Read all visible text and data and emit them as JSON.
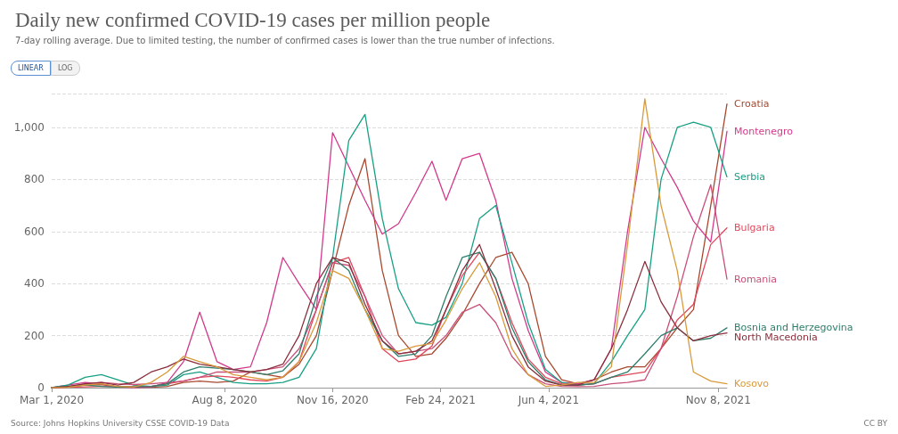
{
  "chart_data": {
    "type": "line",
    "title": "Daily new confirmed COVID-19 cases per million people",
    "subtitle": "7-day rolling average. Due to limited testing, the number of confirmed cases is lower than the true number of infections.",
    "annotations": [
      "LINEAR",
      "LOG",
      "Source: Johns Hopkins University CSSE COVID-19 Data",
      "CC BY"
    ],
    "x": [
      "2020-03-01",
      "2020-03-16",
      "2020-04-01",
      "2020-04-16",
      "2020-05-01",
      "2020-05-16",
      "2020-06-01",
      "2020-06-16",
      "2020-07-01",
      "2020-07-16",
      "2020-08-01",
      "2020-08-16",
      "2020-09-01",
      "2020-09-16",
      "2020-10-01",
      "2020-10-16",
      "2020-11-01",
      "2020-11-16",
      "2020-12-01",
      "2020-12-16",
      "2021-01-01",
      "2021-01-16",
      "2021-02-01",
      "2021-02-16",
      "2021-03-01",
      "2021-03-16",
      "2021-04-01",
      "2021-04-16",
      "2021-05-01",
      "2021-05-16",
      "2021-06-01",
      "2021-06-16",
      "2021-07-01",
      "2021-07-16",
      "2021-08-01",
      "2021-08-16",
      "2021-09-01",
      "2021-09-16",
      "2021-10-01",
      "2021-10-16",
      "2021-11-01",
      "2021-11-16"
    ],
    "xlim": [
      "2020-03-01",
      "2021-11-16"
    ],
    "xticks": [
      {
        "value": "2020-03-01",
        "label": "Mar 1, 2020"
      },
      {
        "value": "2020-08-08",
        "label": "Aug 8, 2020"
      },
      {
        "value": "2020-11-16",
        "label": "Nov 16, 2020"
      },
      {
        "value": "2021-02-24",
        "label": "Feb 24, 2021"
      },
      {
        "value": "2021-06-04",
        "label": "Jun 4, 2021"
      },
      {
        "value": "2021-11-08",
        "label": "Nov 8, 2021"
      }
    ],
    "ylim": [
      0,
      1130
    ],
    "yticks": [
      0,
      200,
      400,
      600,
      800,
      {
        "value": 1000,
        "label": "1,000"
      }
    ],
    "grid": "y",
    "marker": "none",
    "line_style": "solid",
    "series": [
      {
        "name": "Croatia",
        "color": "#a8482f",
        "values": [
          0,
          2,
          10,
          12,
          3,
          1,
          1,
          5,
          20,
          25,
          20,
          25,
          60,
          50,
          40,
          90,
          200,
          450,
          700,
          880,
          450,
          200,
          120,
          130,
          190,
          280,
          400,
          500,
          520,
          400,
          120,
          30,
          15,
          30,
          60,
          80,
          80,
          150,
          230,
          300,
          700,
          1090
        ]
      },
      {
        "name": "Montenegro",
        "color": "#d23a8c",
        "values": [
          0,
          10,
          20,
          15,
          2,
          0,
          2,
          20,
          100,
          290,
          100,
          70,
          80,
          250,
          500,
          400,
          300,
          980,
          850,
          720,
          590,
          630,
          750,
          870,
          720,
          880,
          900,
          720,
          420,
          220,
          60,
          20,
          15,
          30,
          150,
          600,
          1000,
          880,
          770,
          640,
          560,
          985
        ]
      },
      {
        "name": "Serbia",
        "color": "#18a085",
        "values": [
          0,
          10,
          40,
          50,
          30,
          10,
          5,
          10,
          50,
          60,
          40,
          20,
          15,
          15,
          20,
          40,
          150,
          500,
          950,
          1050,
          650,
          380,
          250,
          240,
          270,
          400,
          650,
          700,
          480,
          250,
          70,
          20,
          10,
          15,
          100,
          200,
          300,
          800,
          1000,
          1020,
          1000,
          810
        ]
      },
      {
        "name": "Bulgaria",
        "color": "#e0475b",
        "values": [
          0,
          1,
          3,
          5,
          5,
          4,
          5,
          15,
          25,
          40,
          45,
          40,
          30,
          25,
          40,
          100,
          300,
          480,
          500,
          350,
          150,
          100,
          110,
          160,
          300,
          430,
          520,
          420,
          250,
          110,
          40,
          15,
          10,
          15,
          40,
          50,
          60,
          150,
          260,
          320,
          550,
          614
        ]
      },
      {
        "name": "Romania",
        "color": "#c8507a",
        "values": [
          0,
          2,
          15,
          20,
          15,
          12,
          15,
          20,
          25,
          40,
          60,
          60,
          60,
          70,
          80,
          150,
          300,
          480,
          470,
          350,
          200,
          130,
          140,
          150,
          200,
          290,
          320,
          250,
          120,
          50,
          15,
          5,
          4,
          5,
          15,
          20,
          30,
          150,
          350,
          580,
          780,
          417
        ]
      },
      {
        "name": "Bosnia and Herzegovina",
        "color": "#2e7d6b",
        "values": [
          0,
          5,
          10,
          5,
          2,
          3,
          5,
          15,
          60,
          80,
          75,
          70,
          60,
          50,
          65,
          130,
          350,
          500,
          450,
          300,
          180,
          120,
          130,
          200,
          350,
          500,
          520,
          420,
          230,
          100,
          30,
          10,
          10,
          15,
          40,
          60,
          130,
          200,
          230,
          180,
          190,
          230
        ]
      },
      {
        "name": "North Macedonia",
        "color": "#8b2e3c",
        "values": [
          0,
          5,
          15,
          20,
          10,
          20,
          60,
          80,
          110,
          90,
          80,
          70,
          60,
          70,
          90,
          200,
          400,
          500,
          480,
          320,
          180,
          130,
          140,
          180,
          300,
          450,
          550,
          380,
          200,
          80,
          25,
          10,
          10,
          30,
          150,
          300,
          485,
          330,
          230,
          180,
          200,
          210
        ]
      },
      {
        "name": "Kosovo",
        "color": "#d89a3a",
        "values": [
          0,
          1,
          10,
          15,
          5,
          2,
          20,
          60,
          120,
          100,
          80,
          50,
          40,
          30,
          40,
          100,
          250,
          450,
          420,
          300,
          150,
          140,
          160,
          170,
          260,
          380,
          480,
          350,
          150,
          50,
          5,
          10,
          20,
          20,
          80,
          550,
          1110,
          700,
          450,
          60,
          25,
          15
        ]
      }
    ]
  }
}
